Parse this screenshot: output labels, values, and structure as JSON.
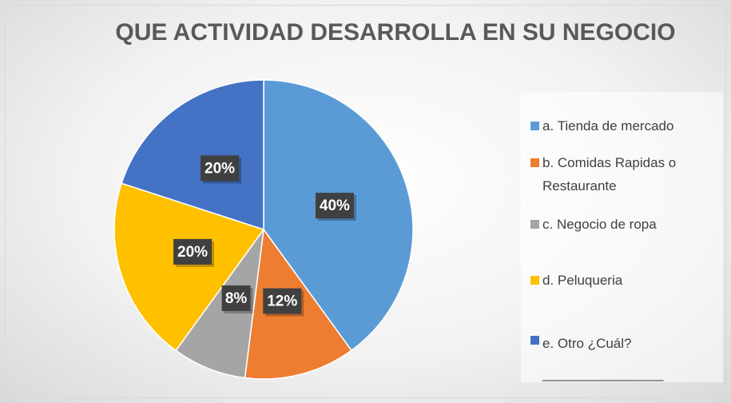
{
  "chart_data": {
    "type": "pie",
    "title": "QUE ACTIVIDAD DESARROLLA EN SU NEGOCIO",
    "categories": [
      "a. Tienda de mercado",
      "b. Comidas Rapidas o Restaurante",
      "c. Negocio de ropa",
      "d. Peluqueria",
      "e. Otro ¿Cuál? ________________"
    ],
    "values": [
      40,
      12,
      8,
      20,
      20
    ],
    "value_labels": [
      "40%",
      "12%",
      "8%",
      "20%",
      "20%"
    ],
    "colors": [
      "#5b9bd5",
      "#ed7d31",
      "#a5a5a5",
      "#ffc000",
      "#4472c4"
    ],
    "legend": "right"
  }
}
